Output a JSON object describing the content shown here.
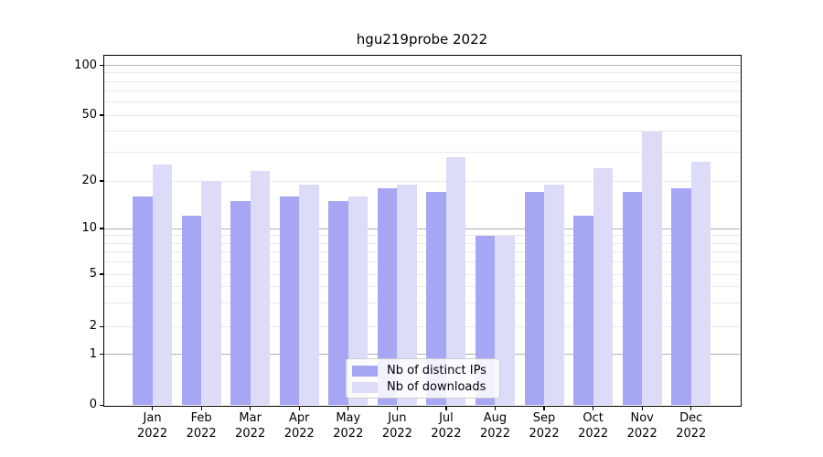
{
  "chart_data": {
    "type": "bar",
    "title": "hgu219probe 2022",
    "year": "2022",
    "categories": [
      "Jan",
      "Feb",
      "Mar",
      "Apr",
      "May",
      "Jun",
      "Jul",
      "Aug",
      "Sep",
      "Oct",
      "Nov",
      "Dec"
    ],
    "series": [
      {
        "name": "Nb of distinct IPs",
        "color": "#a6a6f4",
        "values": [
          16,
          12,
          15,
          16,
          15,
          18,
          17,
          9,
          17,
          12,
          17,
          18
        ]
      },
      {
        "name": "Nb of downloads",
        "color": "#dcdcf9",
        "values": [
          25,
          20,
          23,
          19,
          16,
          19,
          28,
          9,
          19,
          24,
          40,
          26
        ]
      }
    ],
    "xlabel": "",
    "ylabel": "",
    "yticks": [
      0,
      1,
      2,
      5,
      10,
      20,
      50,
      100
    ],
    "ylim": [
      0,
      100
    ],
    "yscale": "log-like (linear 0-1, logarithmic above)",
    "major_gridlines": [
      1,
      10,
      100
    ],
    "minor_gridlines": [
      2,
      3,
      4,
      5,
      6,
      7,
      8,
      9,
      20,
      30,
      40,
      50,
      60,
      70,
      80,
      90
    ],
    "grid": true,
    "legend_position": "bottom-center",
    "colors": {
      "minor_grid": "#eaeaea",
      "major_grid": "#b0b0b0",
      "axis": "#000000",
      "text": "#000000"
    }
  }
}
